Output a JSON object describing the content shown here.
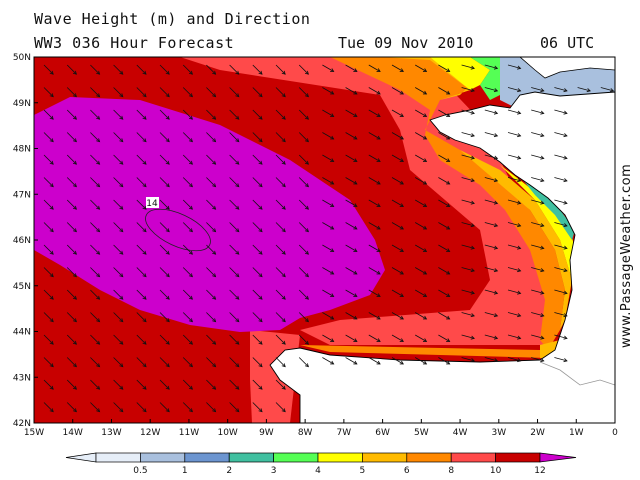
{
  "header": {
    "title": "Wave Height (m) and Direction",
    "model": "WW3 036 Hour Forecast",
    "date": "Tue 09 Nov 2010",
    "time": "06 UTC"
  },
  "map": {
    "lat_labels": [
      "50N",
      "49N",
      "48N",
      "47N",
      "46N",
      "45N",
      "44N",
      "43N",
      "42N"
    ],
    "lon_labels": [
      "15W",
      "14W",
      "13W",
      "12W",
      "11W",
      "10W",
      "9W",
      "8W",
      "7W",
      "6W",
      "5W",
      "4W",
      "3W",
      "2W",
      "1W",
      "0"
    ],
    "max_marker": "14",
    "land_color": "#ffffff",
    "coast_color": "#000000",
    "arrow_color": "#111111"
  },
  "legend": {
    "ticks": [
      "0.5",
      "1",
      "2",
      "3",
      "4",
      "5",
      "6",
      "8",
      "10",
      "12"
    ],
    "colors": [
      "#e6eef8",
      "#a9c0de",
      "#6c95d0",
      "#40c0a0",
      "#55ff55",
      "#ffff00",
      "#ffbb00",
      "#ff8800",
      "#ff4a4a",
      "#c80000",
      "#cc00cc"
    ]
  },
  "watermark": "www.PassageWeather.com"
}
